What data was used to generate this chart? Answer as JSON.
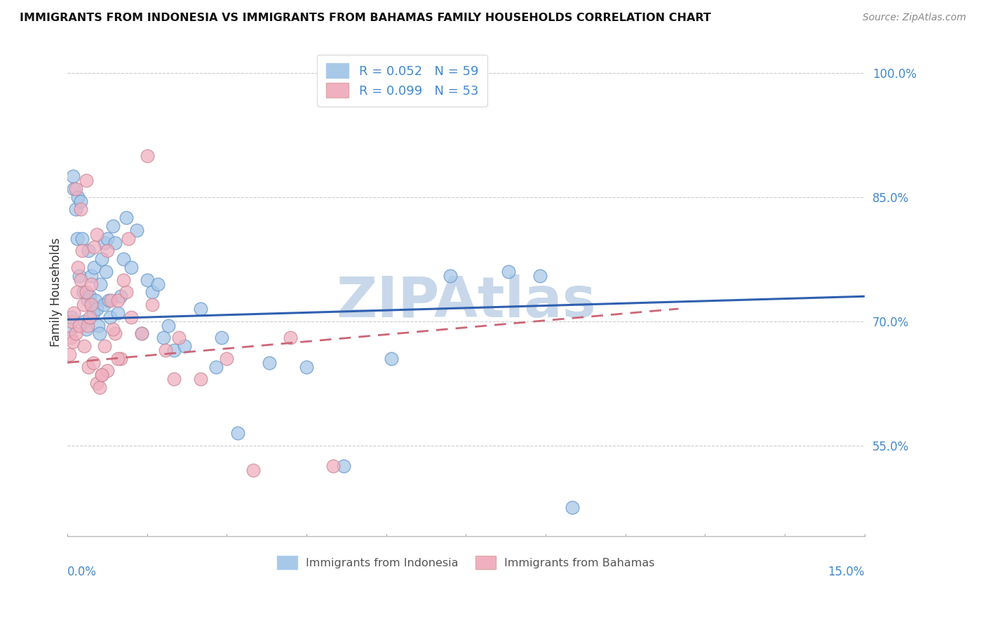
{
  "title": "IMMIGRANTS FROM INDONESIA VS IMMIGRANTS FROM BAHAMAS FAMILY HOUSEHOLDS CORRELATION CHART",
  "source": "Source: ZipAtlas.com",
  "ylabel": "Family Households",
  "xlim": [
    0.0,
    15.0
  ],
  "ylim": [
    44.0,
    103.0
  ],
  "indonesia_color": "#a8c8e8",
  "indonesia_edge": "#6699cc",
  "bahamas_color": "#f0b0c0",
  "bahamas_edge": "#cc8899",
  "indonesia_label": "Immigrants from Indonesia",
  "bahamas_label": "Immigrants from Bahamas",
  "R_indonesia": 0.052,
  "N_indonesia": 59,
  "R_bahamas": 0.099,
  "N_bahamas": 53,
  "trendline_indo_color": "#3060b0",
  "trendline_bah_color": "#cc6677",
  "watermark": "ZIPAtlas",
  "watermark_color": "#c8d8ea",
  "indo_line_y0": 70.2,
  "indo_line_y1": 73.0,
  "bah_line_y0": 65.0,
  "bah_line_y1": 71.5,
  "bah_line_x1": 11.5,
  "indonesia_x": [
    0.05,
    0.08,
    0.1,
    0.12,
    0.15,
    0.18,
    0.2,
    0.22,
    0.25,
    0.28,
    0.3,
    0.32,
    0.35,
    0.38,
    0.4,
    0.42,
    0.45,
    0.48,
    0.5,
    0.52,
    0.55,
    0.58,
    0.6,
    0.62,
    0.65,
    0.68,
    0.7,
    0.72,
    0.75,
    0.78,
    0.8,
    0.85,
    0.9,
    0.95,
    1.0,
    1.05,
    1.1,
    1.2,
    1.3,
    1.4,
    1.5,
    1.6,
    1.7,
    1.8,
    1.9,
    2.0,
    2.2,
    2.5,
    2.8,
    3.2,
    3.8,
    4.5,
    5.2,
    6.1,
    7.2,
    8.3,
    8.9,
    9.5,
    2.9
  ],
  "indonesia_y": [
    69.0,
    70.5,
    87.5,
    86.0,
    83.5,
    80.0,
    85.0,
    75.5,
    84.5,
    80.0,
    73.5,
    70.0,
    69.0,
    72.5,
    78.5,
    73.0,
    75.5,
    71.0,
    76.5,
    72.5,
    71.5,
    69.5,
    68.5,
    74.5,
    77.5,
    72.0,
    79.5,
    76.0,
    80.0,
    72.5,
    70.5,
    81.5,
    79.5,
    71.0,
    73.0,
    77.5,
    82.5,
    76.5,
    81.0,
    68.5,
    75.0,
    73.5,
    74.5,
    68.0,
    69.5,
    66.5,
    67.0,
    71.5,
    64.5,
    56.5,
    65.0,
    64.5,
    52.5,
    65.5,
    75.5,
    76.0,
    75.5,
    47.5,
    68.0
  ],
  "bahamas_x": [
    0.04,
    0.06,
    0.08,
    0.1,
    0.12,
    0.15,
    0.18,
    0.2,
    0.22,
    0.25,
    0.28,
    0.3,
    0.32,
    0.35,
    0.38,
    0.4,
    0.42,
    0.45,
    0.48,
    0.5,
    0.55,
    0.6,
    0.65,
    0.7,
    0.75,
    0.82,
    0.9,
    0.95,
    1.0,
    1.1,
    1.2,
    1.4,
    1.6,
    1.85,
    2.1,
    2.5,
    3.0,
    3.5,
    4.2,
    5.0,
    0.15,
    0.25,
    0.35,
    0.45,
    0.55,
    0.65,
    0.75,
    0.85,
    0.95,
    1.05,
    1.15,
    1.5,
    2.0
  ],
  "bahamas_y": [
    66.0,
    68.0,
    70.0,
    67.5,
    71.0,
    68.5,
    73.5,
    76.5,
    69.5,
    75.0,
    78.5,
    72.0,
    67.0,
    73.5,
    69.5,
    64.5,
    70.5,
    72.0,
    65.0,
    79.0,
    62.5,
    62.0,
    63.5,
    67.0,
    64.0,
    72.5,
    68.5,
    72.5,
    65.5,
    73.5,
    70.5,
    68.5,
    72.0,
    66.5,
    68.0,
    63.0,
    65.5,
    52.0,
    68.0,
    52.5,
    86.0,
    83.5,
    87.0,
    74.5,
    80.5,
    63.5,
    78.5,
    69.0,
    65.5,
    75.0,
    80.0,
    90.0,
    63.0
  ]
}
